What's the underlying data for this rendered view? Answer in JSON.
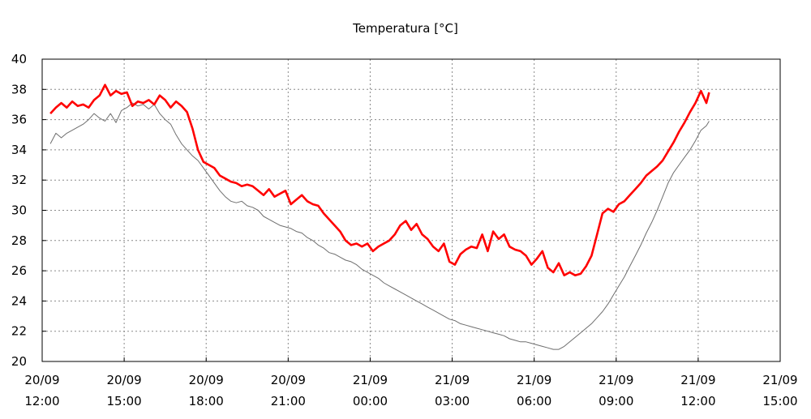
{
  "chart_data": {
    "type": "line",
    "title": "Temperatura [°C]",
    "xlabel": "",
    "ylabel": "",
    "grid": true,
    "ylim": [
      20,
      40
    ],
    "xlim_hours": [
      0,
      27
    ],
    "y_ticks": [
      20,
      22,
      24,
      26,
      28,
      30,
      32,
      34,
      36,
      38,
      40
    ],
    "x_ticks": [
      {
        "hour": 0,
        "date": "20/09",
        "time": "12:00"
      },
      {
        "hour": 3,
        "date": "20/09",
        "time": "15:00"
      },
      {
        "hour": 6,
        "date": "20/09",
        "time": "18:00"
      },
      {
        "hour": 9,
        "date": "20/09",
        "time": "21:00"
      },
      {
        "hour": 12,
        "date": "21/09",
        "time": "00:00"
      },
      {
        "hour": 15,
        "date": "21/09",
        "time": "03:00"
      },
      {
        "hour": 18,
        "date": "21/09",
        "time": "06:00"
      },
      {
        "hour": 21,
        "date": "21/09",
        "time": "09:00"
      },
      {
        "hour": 24,
        "date": "21/09",
        "time": "12:00"
      },
      {
        "hour": 27,
        "date": "21/09",
        "time": "15:00"
      }
    ],
    "series": [
      {
        "name": "red",
        "color": "#ff0000",
        "points": [
          [
            0.3,
            36.4
          ],
          [
            0.5,
            36.8
          ],
          [
            0.7,
            37.1
          ],
          [
            0.9,
            36.8
          ],
          [
            1.1,
            37.2
          ],
          [
            1.3,
            36.9
          ],
          [
            1.5,
            37.0
          ],
          [
            1.7,
            36.8
          ],
          [
            1.9,
            37.3
          ],
          [
            2.1,
            37.6
          ],
          [
            2.3,
            38.3
          ],
          [
            2.5,
            37.6
          ],
          [
            2.7,
            37.9
          ],
          [
            2.9,
            37.7
          ],
          [
            3.1,
            37.8
          ],
          [
            3.3,
            36.9
          ],
          [
            3.5,
            37.2
          ],
          [
            3.7,
            37.1
          ],
          [
            3.9,
            37.3
          ],
          [
            4.1,
            37.0
          ],
          [
            4.3,
            37.6
          ],
          [
            4.5,
            37.3
          ],
          [
            4.7,
            36.8
          ],
          [
            4.9,
            37.2
          ],
          [
            5.1,
            36.9
          ],
          [
            5.3,
            36.5
          ],
          [
            5.5,
            35.4
          ],
          [
            5.7,
            34.0
          ],
          [
            5.9,
            33.2
          ],
          [
            6.1,
            33.0
          ],
          [
            6.3,
            32.8
          ],
          [
            6.5,
            32.3
          ],
          [
            6.7,
            32.1
          ],
          [
            6.9,
            31.9
          ],
          [
            7.1,
            31.8
          ],
          [
            7.3,
            31.6
          ],
          [
            7.5,
            31.7
          ],
          [
            7.7,
            31.6
          ],
          [
            7.9,
            31.3
          ],
          [
            8.1,
            31.0
          ],
          [
            8.3,
            31.4
          ],
          [
            8.5,
            30.9
          ],
          [
            8.7,
            31.1
          ],
          [
            8.9,
            31.3
          ],
          [
            9.1,
            30.4
          ],
          [
            9.3,
            30.7
          ],
          [
            9.5,
            31.0
          ],
          [
            9.7,
            30.6
          ],
          [
            9.9,
            30.4
          ],
          [
            10.1,
            30.3
          ],
          [
            10.3,
            29.8
          ],
          [
            10.5,
            29.4
          ],
          [
            10.7,
            29.0
          ],
          [
            10.9,
            28.6
          ],
          [
            11.1,
            28.0
          ],
          [
            11.3,
            27.7
          ],
          [
            11.5,
            27.8
          ],
          [
            11.7,
            27.6
          ],
          [
            11.9,
            27.8
          ],
          [
            12.1,
            27.3
          ],
          [
            12.3,
            27.6
          ],
          [
            12.5,
            27.8
          ],
          [
            12.7,
            28.0
          ],
          [
            12.9,
            28.4
          ],
          [
            13.1,
            29.0
          ],
          [
            13.3,
            29.3
          ],
          [
            13.5,
            28.7
          ],
          [
            13.7,
            29.1
          ],
          [
            13.9,
            28.4
          ],
          [
            14.1,
            28.1
          ],
          [
            14.3,
            27.6
          ],
          [
            14.5,
            27.3
          ],
          [
            14.7,
            27.8
          ],
          [
            14.9,
            26.6
          ],
          [
            15.1,
            26.4
          ],
          [
            15.3,
            27.1
          ],
          [
            15.5,
            27.4
          ],
          [
            15.7,
            27.6
          ],
          [
            15.9,
            27.5
          ],
          [
            16.1,
            28.4
          ],
          [
            16.3,
            27.3
          ],
          [
            16.5,
            28.6
          ],
          [
            16.7,
            28.1
          ],
          [
            16.9,
            28.4
          ],
          [
            17.1,
            27.6
          ],
          [
            17.3,
            27.4
          ],
          [
            17.5,
            27.3
          ],
          [
            17.7,
            27.0
          ],
          [
            17.9,
            26.4
          ],
          [
            18.1,
            26.8
          ],
          [
            18.3,
            27.3
          ],
          [
            18.5,
            26.2
          ],
          [
            18.7,
            25.9
          ],
          [
            18.9,
            26.5
          ],
          [
            19.1,
            25.7
          ],
          [
            19.3,
            25.9
          ],
          [
            19.5,
            25.7
          ],
          [
            19.7,
            25.8
          ],
          [
            19.9,
            26.3
          ],
          [
            20.1,
            27.0
          ],
          [
            20.3,
            28.4
          ],
          [
            20.5,
            29.8
          ],
          [
            20.7,
            30.1
          ],
          [
            20.9,
            29.9
          ],
          [
            21.1,
            30.4
          ],
          [
            21.3,
            30.6
          ],
          [
            21.5,
            31.0
          ],
          [
            21.7,
            31.4
          ],
          [
            21.9,
            31.8
          ],
          [
            22.1,
            32.3
          ],
          [
            22.3,
            32.6
          ],
          [
            22.5,
            32.9
          ],
          [
            22.7,
            33.3
          ],
          [
            22.9,
            33.9
          ],
          [
            23.1,
            34.5
          ],
          [
            23.3,
            35.2
          ],
          [
            23.5,
            35.8
          ],
          [
            23.7,
            36.5
          ],
          [
            23.9,
            37.1
          ],
          [
            24.1,
            37.9
          ],
          [
            24.3,
            37.1
          ],
          [
            24.4,
            37.8
          ]
        ]
      },
      {
        "name": "gray",
        "color": "#6e6e6e",
        "points": [
          [
            0.3,
            34.4
          ],
          [
            0.5,
            35.1
          ],
          [
            0.7,
            34.8
          ],
          [
            0.9,
            35.1
          ],
          [
            1.1,
            35.3
          ],
          [
            1.3,
            35.5
          ],
          [
            1.5,
            35.7
          ],
          [
            1.7,
            36.0
          ],
          [
            1.9,
            36.4
          ],
          [
            2.1,
            36.1
          ],
          [
            2.3,
            35.9
          ],
          [
            2.5,
            36.4
          ],
          [
            2.7,
            35.8
          ],
          [
            2.9,
            36.6
          ],
          [
            3.1,
            36.8
          ],
          [
            3.3,
            37.1
          ],
          [
            3.5,
            36.9
          ],
          [
            3.7,
            37.0
          ],
          [
            3.9,
            36.7
          ],
          [
            4.1,
            37.0
          ],
          [
            4.3,
            36.4
          ],
          [
            4.5,
            36.0
          ],
          [
            4.7,
            35.7
          ],
          [
            4.9,
            35.0
          ],
          [
            5.1,
            34.4
          ],
          [
            5.3,
            34.0
          ],
          [
            5.5,
            33.6
          ],
          [
            5.7,
            33.3
          ],
          [
            5.9,
            32.8
          ],
          [
            6.1,
            32.3
          ],
          [
            6.3,
            31.8
          ],
          [
            6.5,
            31.3
          ],
          [
            6.7,
            30.9
          ],
          [
            6.9,
            30.6
          ],
          [
            7.1,
            30.5
          ],
          [
            7.3,
            30.6
          ],
          [
            7.5,
            30.3
          ],
          [
            7.7,
            30.2
          ],
          [
            7.9,
            30.0
          ],
          [
            8.1,
            29.6
          ],
          [
            8.3,
            29.4
          ],
          [
            8.5,
            29.2
          ],
          [
            8.7,
            29.0
          ],
          [
            8.9,
            28.9
          ],
          [
            9.1,
            28.8
          ],
          [
            9.3,
            28.6
          ],
          [
            9.5,
            28.5
          ],
          [
            9.7,
            28.2
          ],
          [
            9.9,
            28.0
          ],
          [
            10.1,
            27.7
          ],
          [
            10.3,
            27.5
          ],
          [
            10.5,
            27.2
          ],
          [
            10.7,
            27.1
          ],
          [
            10.9,
            26.9
          ],
          [
            11.1,
            26.7
          ],
          [
            11.3,
            26.6
          ],
          [
            11.5,
            26.4
          ],
          [
            11.7,
            26.1
          ],
          [
            11.9,
            25.9
          ],
          [
            12.1,
            25.7
          ],
          [
            12.3,
            25.5
          ],
          [
            12.5,
            25.2
          ],
          [
            12.7,
            25.0
          ],
          [
            12.9,
            24.8
          ],
          [
            13.1,
            24.6
          ],
          [
            13.3,
            24.4
          ],
          [
            13.5,
            24.2
          ],
          [
            13.7,
            24.0
          ],
          [
            13.9,
            23.8
          ],
          [
            14.1,
            23.6
          ],
          [
            14.3,
            23.4
          ],
          [
            14.5,
            23.2
          ],
          [
            14.7,
            23.0
          ],
          [
            14.9,
            22.8
          ],
          [
            15.1,
            22.7
          ],
          [
            15.3,
            22.5
          ],
          [
            15.5,
            22.4
          ],
          [
            15.7,
            22.3
          ],
          [
            15.9,
            22.2
          ],
          [
            16.1,
            22.1
          ],
          [
            16.3,
            22.0
          ],
          [
            16.5,
            21.9
          ],
          [
            16.7,
            21.8
          ],
          [
            16.9,
            21.7
          ],
          [
            17.1,
            21.5
          ],
          [
            17.3,
            21.4
          ],
          [
            17.5,
            21.3
          ],
          [
            17.7,
            21.3
          ],
          [
            17.9,
            21.2
          ],
          [
            18.1,
            21.1
          ],
          [
            18.3,
            21.0
          ],
          [
            18.5,
            20.9
          ],
          [
            18.7,
            20.8
          ],
          [
            18.9,
            20.8
          ],
          [
            19.1,
            21.0
          ],
          [
            19.3,
            21.3
          ],
          [
            19.5,
            21.6
          ],
          [
            19.7,
            21.9
          ],
          [
            19.9,
            22.2
          ],
          [
            20.1,
            22.5
          ],
          [
            20.3,
            22.9
          ],
          [
            20.5,
            23.3
          ],
          [
            20.7,
            23.8
          ],
          [
            20.9,
            24.4
          ],
          [
            21.1,
            25.0
          ],
          [
            21.3,
            25.6
          ],
          [
            21.5,
            26.3
          ],
          [
            21.7,
            27.0
          ],
          [
            21.9,
            27.7
          ],
          [
            22.1,
            28.5
          ],
          [
            22.3,
            29.2
          ],
          [
            22.5,
            30.0
          ],
          [
            22.7,
            30.9
          ],
          [
            22.9,
            31.8
          ],
          [
            23.1,
            32.5
          ],
          [
            23.3,
            33.0
          ],
          [
            23.5,
            33.5
          ],
          [
            23.7,
            34.0
          ],
          [
            23.9,
            34.6
          ],
          [
            24.1,
            35.3
          ],
          [
            24.3,
            35.6
          ],
          [
            24.4,
            35.9
          ]
        ]
      }
    ]
  }
}
